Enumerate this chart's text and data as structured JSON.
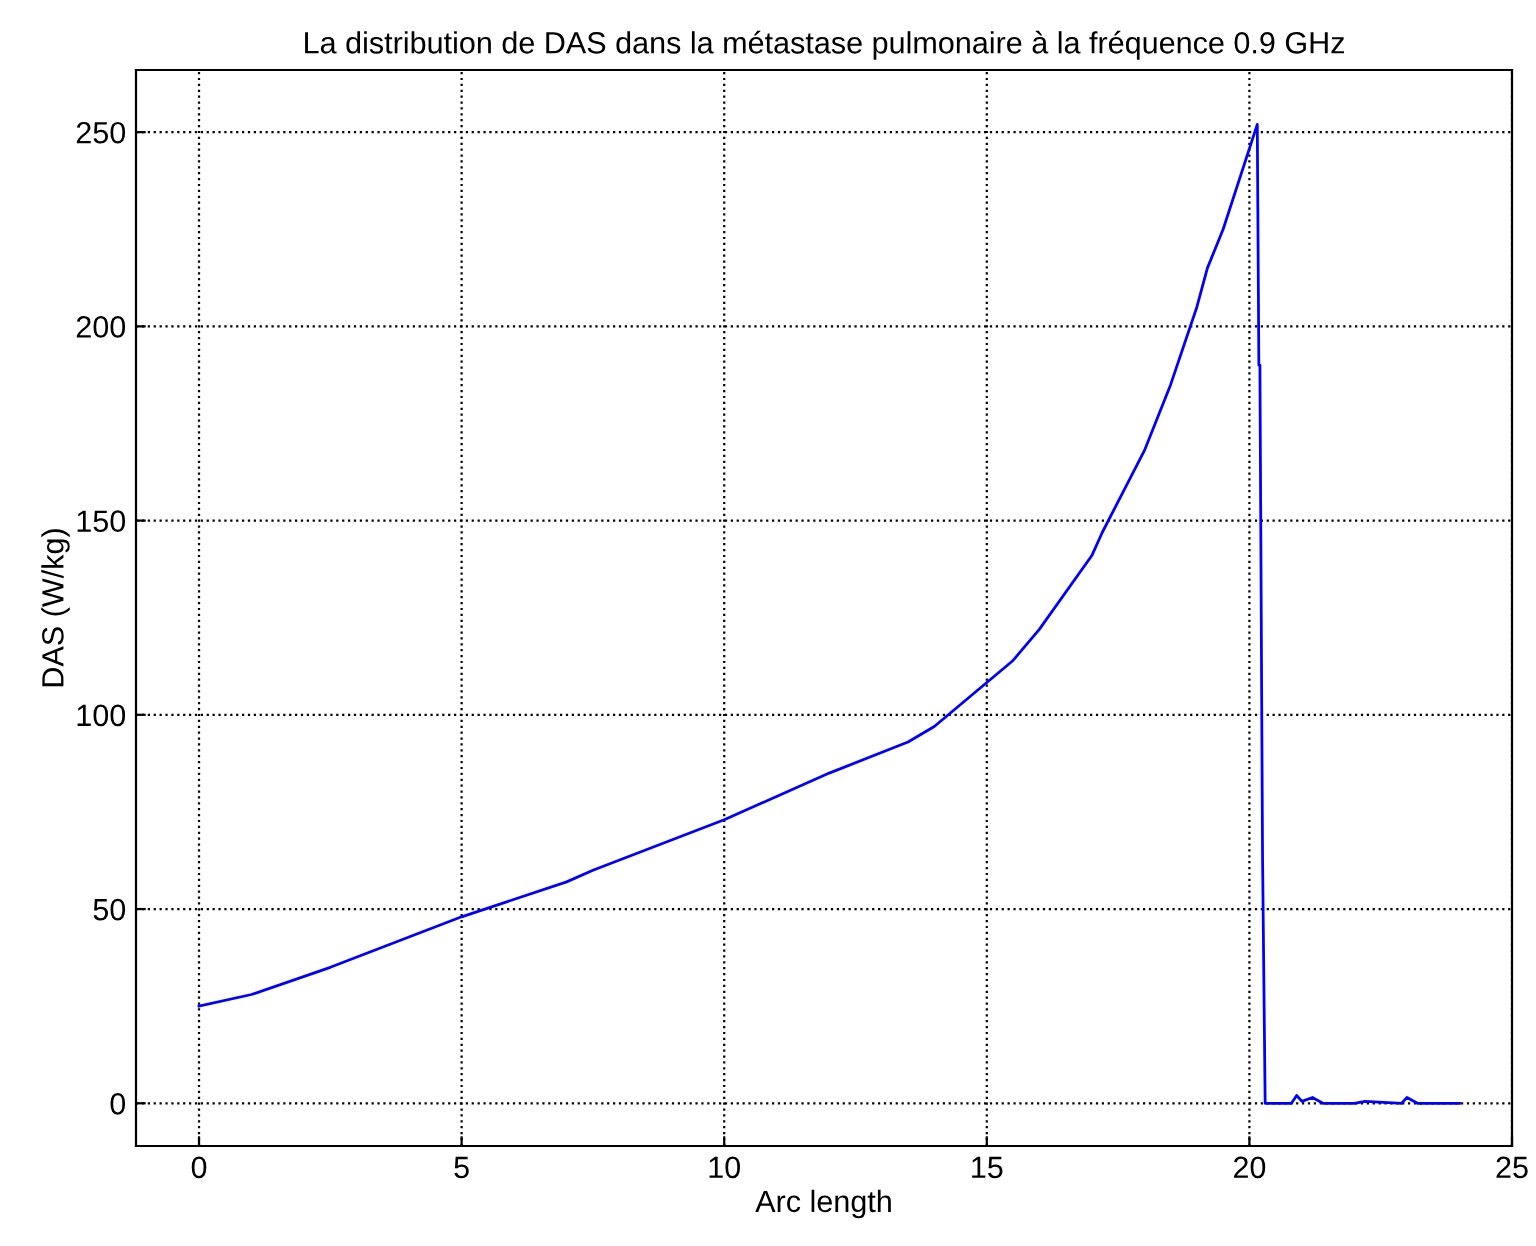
{
  "chart_data": {
    "type": "line",
    "title": "La distribution de DAS dans la métastase pulmonaire à la fréquence 0.9 GHz",
    "xlabel": "Arc length",
    "ylabel": "DAS (W/kg)",
    "x": [
      0,
      1,
      2.5,
      5,
      7,
      7.5,
      10,
      12,
      13.5,
      14,
      15.5,
      16,
      17,
      17.2,
      18,
      18.5,
      19,
      19.2,
      19.5,
      20.15,
      20.18,
      20.2,
      20.25,
      20.3,
      20.8,
      20.9,
      21,
      21.2,
      21.4,
      22,
      22.2,
      22.9,
      23,
      23.2,
      24
    ],
    "series": [
      {
        "color": "#0000ff",
        "values": [
          25,
          28,
          35,
          48,
          57,
          60,
          73,
          85,
          93,
          97,
          114,
          122,
          141,
          147,
          168,
          185,
          205,
          215,
          225,
          252,
          190,
          190,
          64,
          0,
          0,
          2,
          0.5,
          1.5,
          0,
          0,
          0.5,
          0,
          1.5,
          0,
          0
        ]
      }
    ],
    "xlim": [
      -1.2,
      25
    ],
    "ylim": [
      -11,
      266
    ],
    "xticks": [
      0,
      5,
      10,
      15,
      20,
      25
    ],
    "yticks": [
      0,
      50,
      100,
      150,
      200,
      250
    ],
    "grid": true,
    "line_style": "solid",
    "marker": "none"
  }
}
